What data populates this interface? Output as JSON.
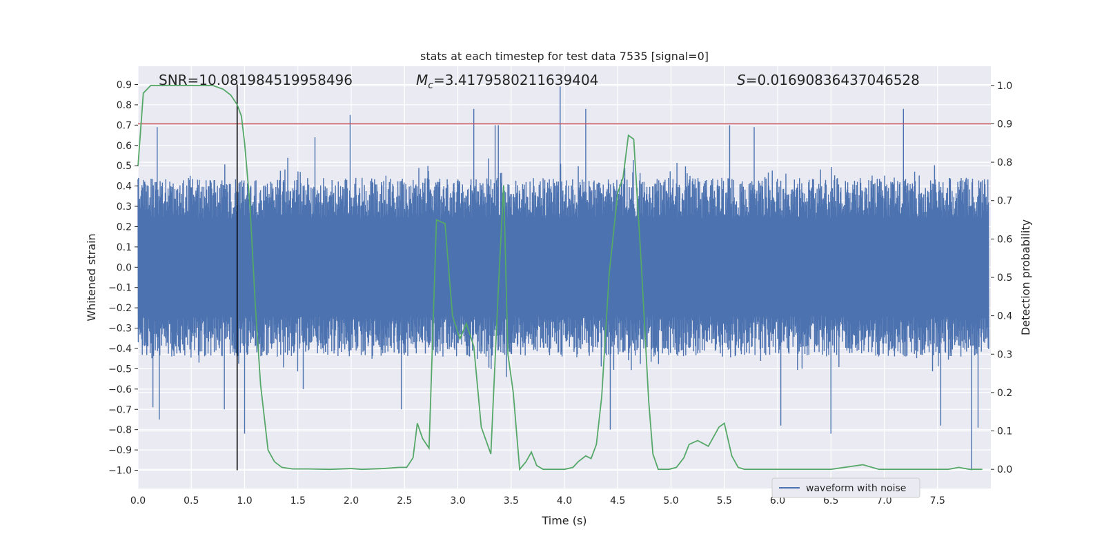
{
  "chart_data": {
    "type": "line",
    "title": "stats at each timestep for test data 7535 [signal=0]",
    "xlabel": "Time (s)",
    "ylabel_left": "Whitened strain",
    "ylabel_right": "Detection probability",
    "xlim": [
      0.0,
      8.0
    ],
    "ylim_left": [
      -1.09,
      0.99
    ],
    "ylim_right": [
      -0.05,
      1.05
    ],
    "xticks": [
      "0.0",
      "0.5",
      "1.0",
      "1.5",
      "2.0",
      "2.5",
      "3.0",
      "3.5",
      "4.0",
      "4.5",
      "5.0",
      "5.5",
      "6.0",
      "6.5",
      "7.0",
      "7.5"
    ],
    "yticks_left": [
      "-1.0",
      "-0.9",
      "-0.8",
      "-0.7",
      "-0.6",
      "-0.5",
      "-0.4",
      "-0.3",
      "-0.2",
      "-0.1",
      "0.0",
      "0.1",
      "0.2",
      "0.3",
      "0.4",
      "0.5",
      "0.6",
      "0.7",
      "0.8",
      "0.9"
    ],
    "yticks_right": [
      "0.0",
      "0.1",
      "0.2",
      "0.3",
      "0.4",
      "0.5",
      "0.6",
      "0.7",
      "0.8",
      "0.9",
      "1.0"
    ],
    "grid": true,
    "legend_position": "lower-right",
    "annotations": {
      "snr": "SNR=10.081984519958496",
      "mc_symbol": "M",
      "mc_sub": "c",
      "mc_value": "=3.4179580211639404",
      "s_symbol": "S",
      "s_value": "=0.016908364370465​28"
    },
    "threshold": {
      "axis": "right",
      "value": 0.9,
      "color": "#c44e52"
    },
    "vline": {
      "x": 0.93,
      "from_y": -1.0,
      "to_y": 0.9,
      "color": "#000000"
    },
    "series": [
      {
        "name": "waveform with noise",
        "axis": "left",
        "color": "#4c72b0",
        "description_of_envelope": "dense noise oscillating roughly between -0.45 and 0.45 with spikes",
        "spikes": [
          {
            "x": 0.18,
            "y": 0.69
          },
          {
            "x": 0.2,
            "y": -0.75
          },
          {
            "x": 0.14,
            "y": -0.69
          },
          {
            "x": 0.81,
            "y": -0.7
          },
          {
            "x": 1.0,
            "y": -0.82
          },
          {
            "x": 1.55,
            "y": -0.6
          },
          {
            "x": 1.66,
            "y": 0.64
          },
          {
            "x": 1.99,
            "y": 0.75
          },
          {
            "x": 2.47,
            "y": -0.7
          },
          {
            "x": 3.15,
            "y": 0.78
          },
          {
            "x": 3.35,
            "y": 0.7
          },
          {
            "x": 3.38,
            "y": 0.7
          },
          {
            "x": 3.96,
            "y": 0.89
          },
          {
            "x": 4.2,
            "y": 0.78
          },
          {
            "x": 4.43,
            "y": -0.8
          },
          {
            "x": 5.55,
            "y": 0.7
          },
          {
            "x": 5.78,
            "y": 0.69
          },
          {
            "x": 6.03,
            "y": -0.78
          },
          {
            "x": 6.5,
            "y": -0.82
          },
          {
            "x": 7.18,
            "y": 0.78
          },
          {
            "x": 7.53,
            "y": -0.78
          },
          {
            "x": 7.82,
            "y": -1.0
          },
          {
            "x": 7.88,
            "y": -0.79
          }
        ]
      },
      {
        "name": "detection probability",
        "axis": "right",
        "color": "#55a868",
        "x": [
          0.0,
          0.05,
          0.12,
          0.2,
          0.3,
          0.5,
          0.7,
          0.8,
          0.87,
          0.93,
          0.97,
          1.0,
          1.05,
          1.1,
          1.15,
          1.22,
          1.28,
          1.35,
          1.45,
          1.6,
          1.8,
          2.0,
          2.1,
          2.3,
          2.45,
          2.52,
          2.58,
          2.62,
          2.67,
          2.73,
          2.8,
          2.88,
          2.95,
          3.02,
          3.08,
          3.15,
          3.22,
          3.31,
          3.38,
          3.43,
          3.47,
          3.52,
          3.58,
          3.64,
          3.69,
          3.74,
          3.8,
          3.9,
          4.0,
          4.08,
          4.13,
          4.2,
          4.25,
          4.3,
          4.35,
          4.42,
          4.5,
          4.55,
          4.6,
          4.65,
          4.72,
          4.79,
          4.83,
          4.88,
          4.93,
          4.98,
          5.05,
          5.12,
          5.17,
          5.25,
          5.35,
          5.45,
          5.5,
          5.57,
          5.63,
          5.69,
          5.75,
          5.82,
          5.88,
          5.93,
          5.98,
          6.05,
          6.2,
          6.5,
          6.8,
          6.95,
          7.05,
          7.1,
          7.2,
          7.45,
          7.6,
          7.7,
          7.8,
          7.92
        ],
        "values": [
          0.79,
          0.98,
          1.0,
          1.0,
          1.0,
          1.0,
          1.0,
          0.99,
          0.975,
          0.95,
          0.92,
          0.85,
          0.69,
          0.43,
          0.22,
          0.05,
          0.02,
          0.005,
          0.001,
          0.001,
          0.0,
          0.002,
          0.0,
          0.002,
          0.005,
          0.005,
          0.03,
          0.12,
          0.08,
          0.055,
          0.65,
          0.64,
          0.4,
          0.34,
          0.38,
          0.32,
          0.11,
          0.04,
          0.47,
          0.74,
          0.3,
          0.2,
          0.0,
          0.02,
          0.045,
          0.01,
          0.0,
          0.0,
          0.0,
          0.005,
          0.02,
          0.035,
          0.028,
          0.065,
          0.19,
          0.51,
          0.72,
          0.76,
          0.87,
          0.86,
          0.54,
          0.18,
          0.04,
          0.0,
          0.0,
          0.0,
          0.005,
          0.03,
          0.065,
          0.075,
          0.06,
          0.11,
          0.12,
          0.035,
          0.005,
          0.0,
          0.0,
          0.0,
          0.0,
          0.0,
          0.0,
          0.0,
          0.0,
          0.0,
          0.012,
          0.0,
          0.0,
          0.0,
          0.0,
          0.0,
          0.0,
          0.005,
          0.0,
          0.0
        ]
      }
    ]
  }
}
